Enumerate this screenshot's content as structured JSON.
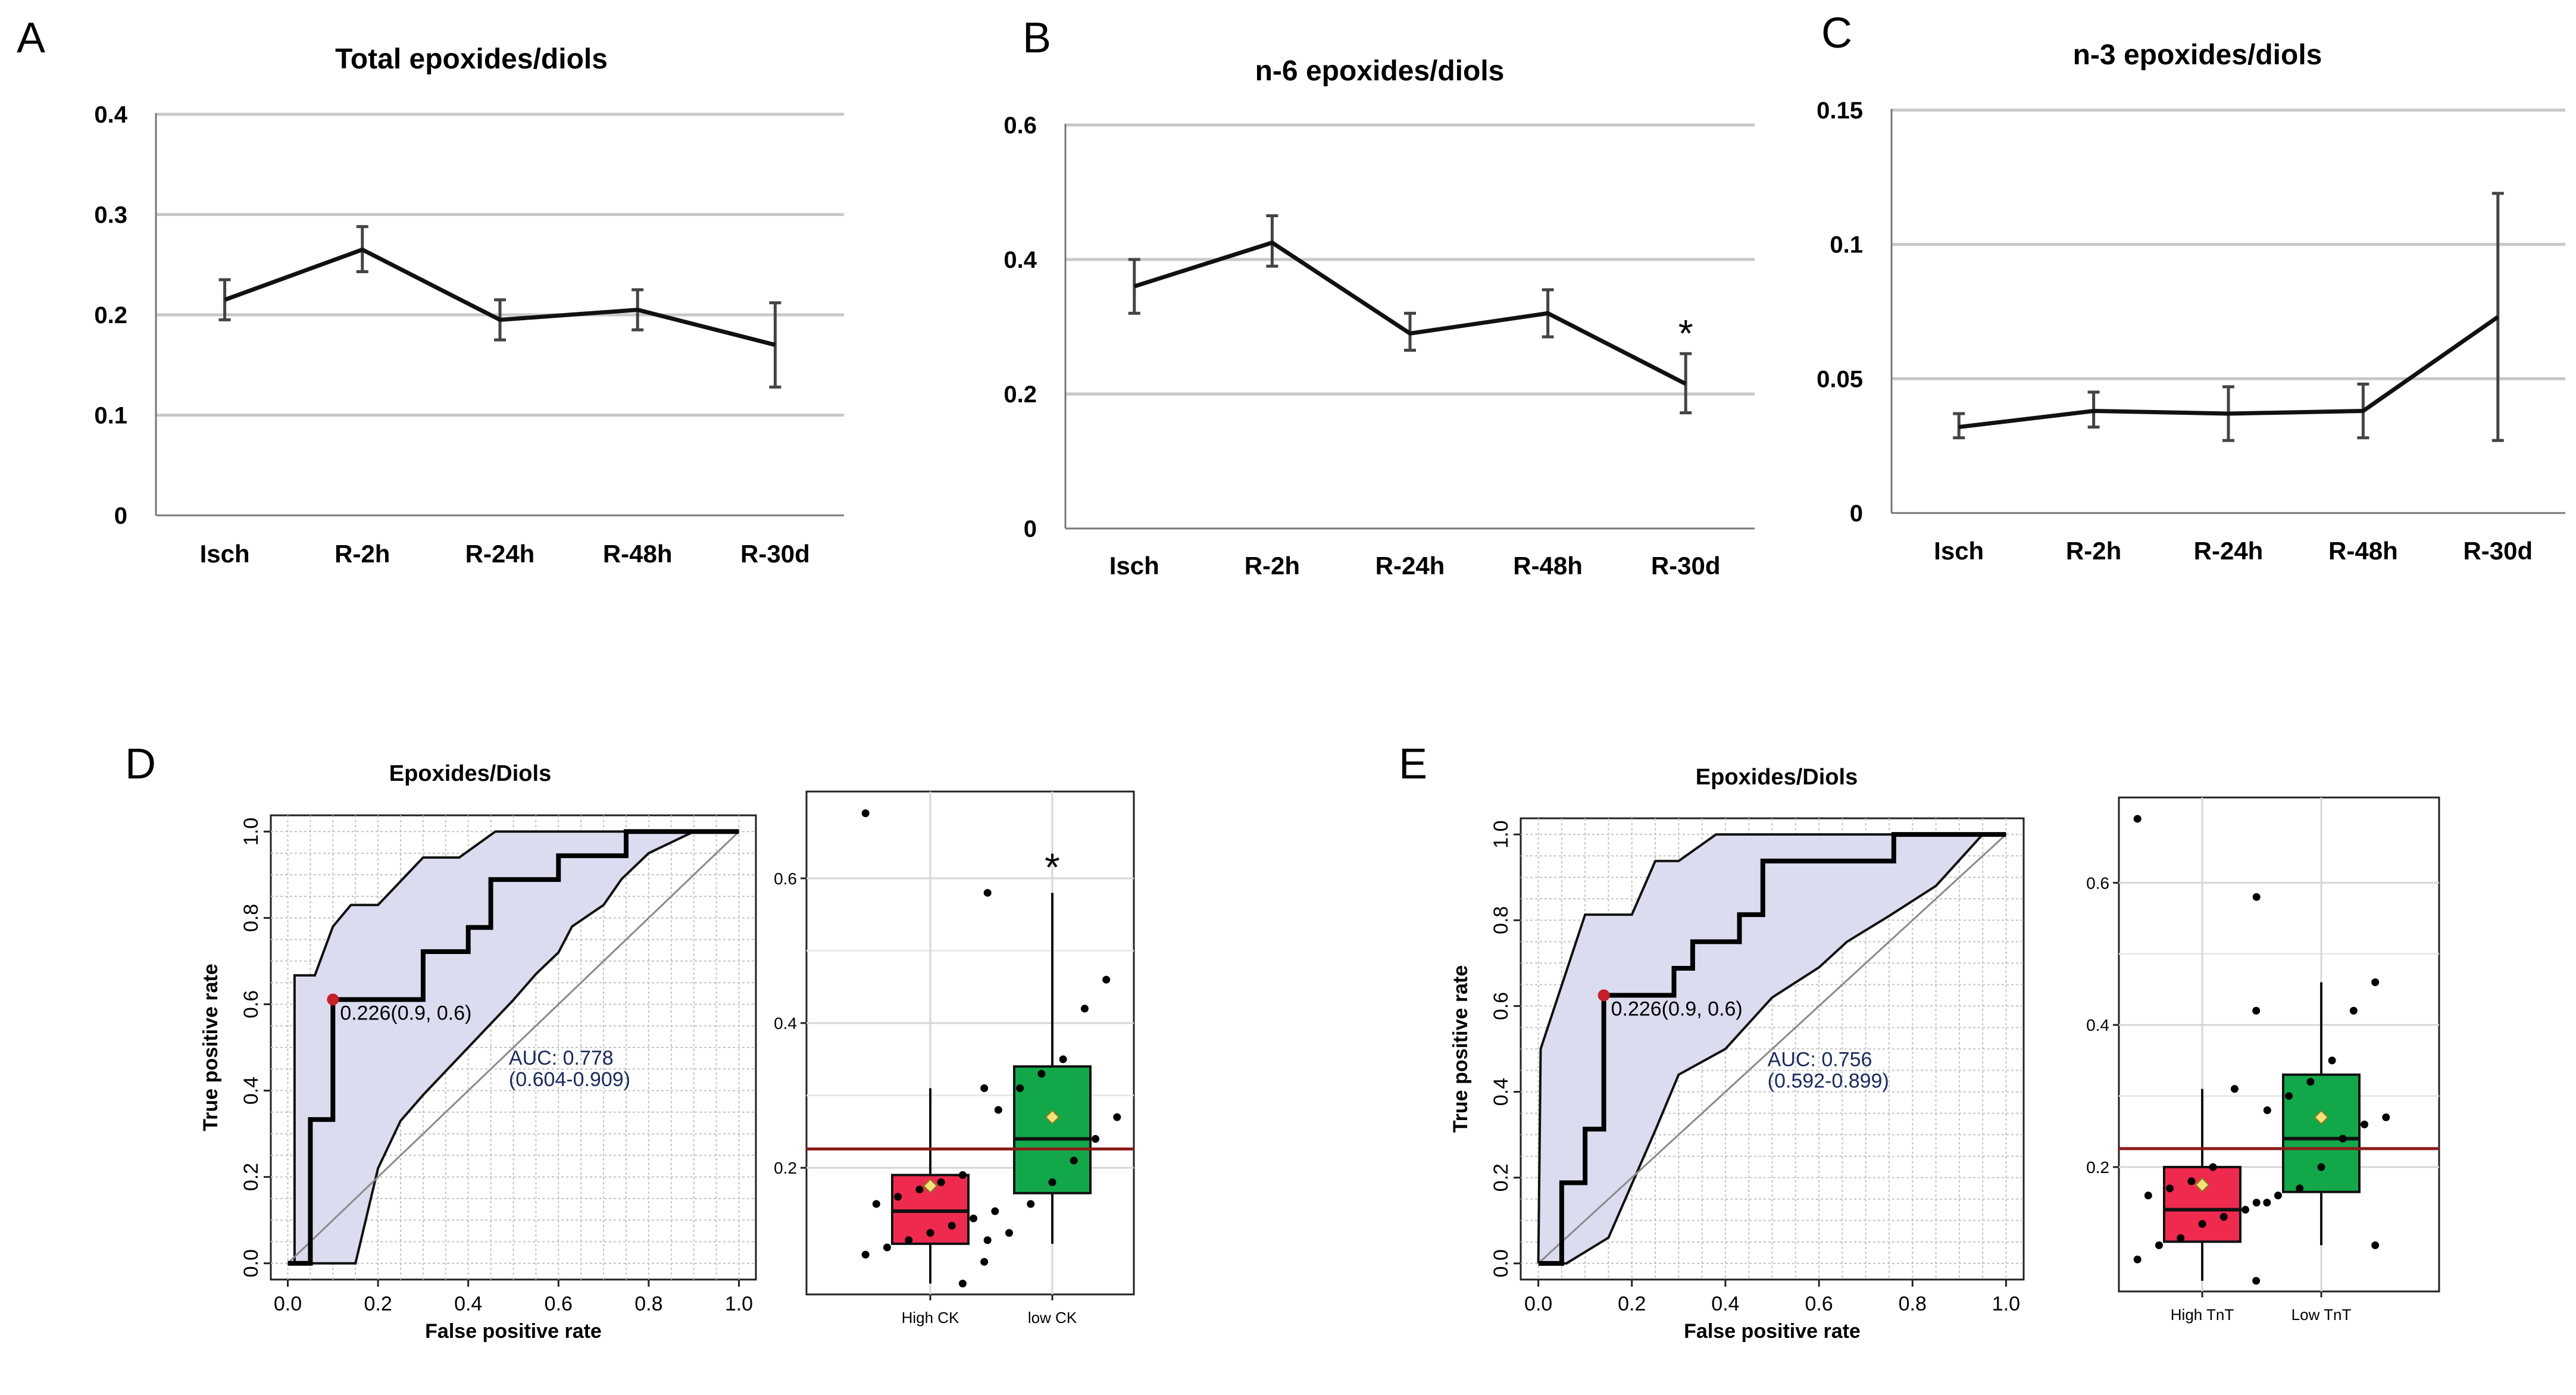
{
  "panels": {
    "A": "A",
    "B": "B",
    "C": "C",
    "D": "D",
    "E": "E"
  },
  "colors": {
    "line": "#111111",
    "errorbar": "#444444",
    "grid": "#c8c8c8",
    "band_fill": "#dcdcf0",
    "diag": "#8a8a8a",
    "cutoff": "#8b1a1a",
    "red_box": "#ef2a4f",
    "green_box": "#12a84a",
    "mean_marker": "#f5e27a"
  },
  "chart_data": [
    {
      "id": "A",
      "type": "line",
      "title": "Total epoxides/diols",
      "categories": [
        "Isch",
        "R-2h",
        "R-24h",
        "R-48h",
        "R-30d"
      ],
      "values": [
        0.215,
        0.265,
        0.195,
        0.205,
        0.17
      ],
      "err_low": [
        0.195,
        0.243,
        0.175,
        0.185,
        0.128
      ],
      "err_high": [
        0.235,
        0.288,
        0.215,
        0.225,
        0.212
      ],
      "ylim": [
        0,
        0.4
      ],
      "yticks": [
        0,
        0.1,
        0.2,
        0.3,
        0.4
      ],
      "ytick_labels": [
        "0",
        "0.1",
        "0.2",
        "0.3",
        "0.4"
      ],
      "annotations": []
    },
    {
      "id": "B",
      "type": "line",
      "title": "n-6 epoxides/diols",
      "categories": [
        "Isch",
        "R-2h",
        "R-24h",
        "R-48h",
        "R-30d"
      ],
      "values": [
        0.36,
        0.425,
        0.29,
        0.32,
        0.215
      ],
      "err_low": [
        0.32,
        0.39,
        0.265,
        0.285,
        0.172
      ],
      "err_high": [
        0.4,
        0.465,
        0.32,
        0.355,
        0.26
      ],
      "ylim": [
        0,
        0.6
      ],
      "yticks": [
        0,
        0.2,
        0.4,
        0.6
      ],
      "ytick_labels": [
        "0",
        "0.2",
        "0.4",
        "0.6"
      ],
      "annotations": [
        {
          "index": 4,
          "text": "*"
        }
      ]
    },
    {
      "id": "C",
      "type": "line",
      "title": "n-3 epoxides/diols",
      "categories": [
        "Isch",
        "R-2h",
        "R-24h",
        "R-48h",
        "R-30d"
      ],
      "values": [
        0.032,
        0.038,
        0.037,
        0.038,
        0.073
      ],
      "err_low": [
        0.028,
        0.032,
        0.027,
        0.028,
        0.027
      ],
      "err_high": [
        0.037,
        0.045,
        0.047,
        0.048,
        0.119
      ],
      "ylim": [
        0,
        0.15
      ],
      "yticks": [
        0,
        0.05,
        0.1,
        0.15
      ],
      "ytick_labels": [
        "0",
        "0.05",
        "0.1",
        "0.15"
      ],
      "annotations": []
    },
    {
      "id": "D-roc",
      "type": "line",
      "title": "Epoxides/Diols",
      "xlabel": "False positive rate",
      "ylabel": "True positive rate",
      "xlim": [
        0,
        1
      ],
      "ylim": [
        0,
        1
      ],
      "xtick_labels": [
        "0.0",
        "0.2",
        "0.4",
        "0.6",
        "0.8",
        "1.0"
      ],
      "ytick_labels": [
        "0.0",
        "0.2",
        "0.4",
        "0.6",
        "0.8",
        "1.0"
      ],
      "roc": [
        [
          0,
          0
        ],
        [
          0.05,
          0
        ],
        [
          0.05,
          0.333
        ],
        [
          0.1,
          0.333
        ],
        [
          0.1,
          0.611
        ],
        [
          0.2,
          0.611
        ],
        [
          0.2,
          0.611
        ],
        [
          0.3,
          0.611
        ],
        [
          0.3,
          0.722
        ],
        [
          0.4,
          0.722
        ],
        [
          0.4,
          0.778
        ],
        [
          0.45,
          0.778
        ],
        [
          0.45,
          0.889
        ],
        [
          0.6,
          0.889
        ],
        [
          0.6,
          0.944
        ],
        [
          0.75,
          0.944
        ],
        [
          0.75,
          1
        ],
        [
          1,
          1
        ]
      ],
      "band_upper": [
        [
          0,
          0
        ],
        [
          0.015,
          0
        ],
        [
          0.015,
          0.667
        ],
        [
          0.06,
          0.667
        ],
        [
          0.1,
          0.78
        ],
        [
          0.14,
          0.83
        ],
        [
          0.2,
          0.83
        ],
        [
          0.3,
          0.94
        ],
        [
          0.38,
          0.94
        ],
        [
          0.46,
          1
        ],
        [
          1,
          1
        ]
      ],
      "band_lower": [
        [
          0.9,
          1
        ],
        [
          0.8,
          0.95
        ],
        [
          0.74,
          0.89
        ],
        [
          0.7,
          0.83
        ],
        [
          0.63,
          0.78
        ],
        [
          0.6,
          0.72
        ],
        [
          0.55,
          0.67
        ],
        [
          0.5,
          0.61
        ],
        [
          0.4,
          0.5
        ],
        [
          0.3,
          0.39
        ],
        [
          0.25,
          0.33
        ],
        [
          0.2,
          0.22
        ],
        [
          0.15,
          0
        ],
        [
          0,
          0
        ]
      ],
      "cutpoint": {
        "x": 0.1,
        "y": 0.611,
        "label": "0.226(0.9, 0.6)"
      },
      "auc_label": "AUC: 0.778",
      "ci_label": "(0.604-0.909)"
    },
    {
      "id": "D-box",
      "type": "scatter",
      "categories": [
        "High CK",
        "low CK"
      ],
      "ylim": [
        0.025,
        0.72
      ],
      "yticks": [
        0.2,
        0.4,
        0.6
      ],
      "ytick_labels": [
        "0.2",
        "0.4",
        "0.6"
      ],
      "cutoff": 0.226,
      "boxes": [
        {
          "q1": 0.095,
          "median": 0.14,
          "q3": 0.19,
          "wlow": 0.04,
          "whigh": 0.31,
          "mean": 0.175
        },
        {
          "q1": 0.165,
          "median": 0.24,
          "q3": 0.34,
          "wlow": 0.095,
          "whigh": 0.58,
          "mean": 0.27
        }
      ],
      "points": [
        [
          0.69,
          0.31,
          0.19,
          0.18,
          0.17,
          0.16,
          0.15,
          0.14,
          0.13,
          0.12,
          0.11,
          0.1,
          0.09,
          0.08,
          0.07,
          0.04
        ],
        [
          0.58,
          0.46,
          0.42,
          0.35,
          0.33,
          0.31,
          0.28,
          0.27,
          0.24,
          0.21,
          0.18,
          0.15,
          0.11,
          0.1
        ]
      ],
      "annotations": [
        {
          "index": 1,
          "text": "*"
        }
      ]
    },
    {
      "id": "E-roc",
      "type": "line",
      "title": "Epoxides/Diols",
      "xlabel": "False positive rate",
      "ylabel": "True positive rate",
      "xlim": [
        0,
        1
      ],
      "ylim": [
        0,
        1
      ],
      "xtick_labels": [
        "0.0",
        "0.2",
        "0.4",
        "0.6",
        "0.8",
        "1.0"
      ],
      "ytick_labels": [
        "0.0",
        "0.2",
        "0.4",
        "0.6",
        "0.8",
        "1.0"
      ],
      "roc": [
        [
          0,
          0
        ],
        [
          0.05,
          0
        ],
        [
          0.05,
          0.188
        ],
        [
          0.1,
          0.188
        ],
        [
          0.1,
          0.313
        ],
        [
          0.14,
          0.313
        ],
        [
          0.14,
          0.625
        ],
        [
          0.29,
          0.625
        ],
        [
          0.29,
          0.688
        ],
        [
          0.33,
          0.688
        ],
        [
          0.33,
          0.75
        ],
        [
          0.43,
          0.75
        ],
        [
          0.43,
          0.813
        ],
        [
          0.48,
          0.813
        ],
        [
          0.48,
          0.938
        ],
        [
          0.76,
          0.938
        ],
        [
          0.76,
          1
        ],
        [
          1,
          1
        ]
      ],
      "band_upper": [
        [
          0,
          0
        ],
        [
          0.005,
          0.5
        ],
        [
          0.1,
          0.813
        ],
        [
          0.2,
          0.813
        ],
        [
          0.25,
          0.938
        ],
        [
          0.3,
          0.938
        ],
        [
          0.38,
          1
        ],
        [
          1,
          1
        ]
      ],
      "band_lower": [
        [
          0.95,
          1
        ],
        [
          0.9,
          0.94
        ],
        [
          0.85,
          0.88
        ],
        [
          0.75,
          0.81
        ],
        [
          0.66,
          0.75
        ],
        [
          0.6,
          0.69
        ],
        [
          0.5,
          0.62
        ],
        [
          0.4,
          0.5
        ],
        [
          0.3,
          0.44
        ],
        [
          0.25,
          0.31
        ],
        [
          0.15,
          0.06
        ],
        [
          0.06,
          0
        ],
        [
          0,
          0
        ]
      ],
      "cutpoint": {
        "x": 0.14,
        "y": 0.625,
        "label": "0.226(0.9, 0.6)"
      },
      "auc_label": "AUC: 0.756",
      "ci_label": "(0.592-0.899)"
    },
    {
      "id": "E-box",
      "type": "scatter",
      "categories": [
        "High TnT",
        "Low TnT"
      ],
      "ylim": [
        0.025,
        0.72
      ],
      "yticks": [
        0.2,
        0.4,
        0.6
      ],
      "ytick_labels": [
        "0.2",
        "0.4",
        "0.6"
      ],
      "cutoff": 0.226,
      "boxes": [
        {
          "q1": 0.095,
          "median": 0.14,
          "q3": 0.2,
          "wlow": 0.04,
          "whigh": 0.31,
          "mean": 0.175
        },
        {
          "q1": 0.165,
          "median": 0.24,
          "q3": 0.33,
          "wlow": 0.09,
          "whigh": 0.46,
          "mean": 0.27
        }
      ],
      "points": [
        [
          0.69,
          0.42,
          0.31,
          0.2,
          0.18,
          0.17,
          0.16,
          0.15,
          0.14,
          0.13,
          0.12,
          0.1,
          0.09,
          0.07,
          0.04
        ],
        [
          0.58,
          0.46,
          0.42,
          0.35,
          0.32,
          0.3,
          0.28,
          0.27,
          0.26,
          0.24,
          0.2,
          0.17,
          0.16,
          0.15,
          0.09
        ]
      ],
      "annotations": []
    }
  ]
}
